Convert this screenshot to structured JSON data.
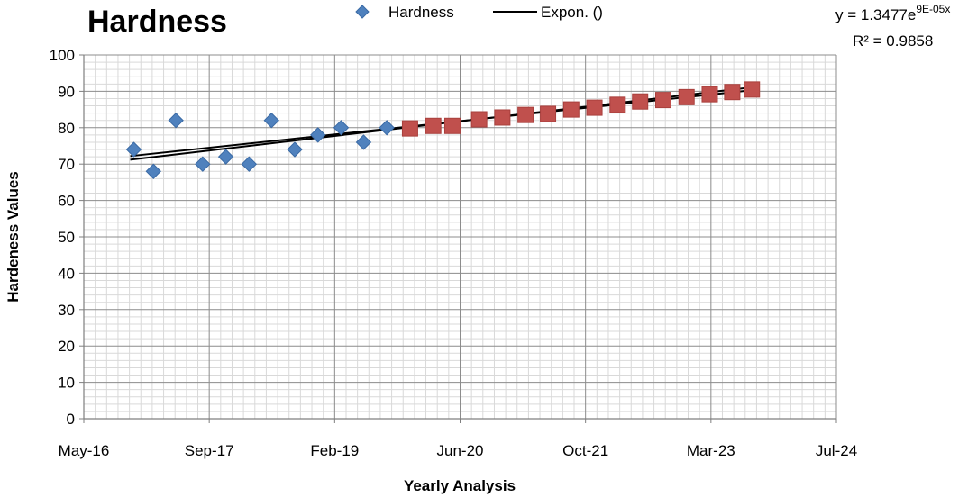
{
  "chart_data": {
    "type": "scatter",
    "title": "Hardness",
    "xlabel": "Yearly Analysis",
    "ylabel": "Hardeness Values",
    "x_ticks": [
      "May-16",
      "Sep-17",
      "Feb-19",
      "Jun-20",
      "Oct-21",
      "Mar-23",
      "Jul-24"
    ],
    "xlim": [
      "2016-05-01",
      "2024-07-01"
    ],
    "ylim": [
      0,
      100
    ],
    "y_ticks": [
      "0",
      "10",
      "20",
      "30",
      "40",
      "50",
      "60",
      "70",
      "80",
      "90",
      "100"
    ],
    "grid": true,
    "legend_position": "top-center",
    "legend": [
      "Hardness",
      "Expon. ()"
    ],
    "series": [
      {
        "name": "Hardness",
        "marker": "diamond",
        "color": "#4F81BD",
        "points": [
          {
            "x": "2016-11-15",
            "y": 74
          },
          {
            "x": "2017-02-01",
            "y": 68
          },
          {
            "x": "2017-05-01",
            "y": 82
          },
          {
            "x": "2017-08-15",
            "y": 70
          },
          {
            "x": "2017-11-15",
            "y": 72
          },
          {
            "x": "2018-02-15",
            "y": 70
          },
          {
            "x": "2018-05-15",
            "y": 82
          },
          {
            "x": "2018-08-15",
            "y": 74
          },
          {
            "x": "2018-11-15",
            "y": 78
          },
          {
            "x": "2019-02-15",
            "y": 80
          },
          {
            "x": "2019-05-15",
            "y": 76
          },
          {
            "x": "2019-08-15",
            "y": 80
          }
        ]
      },
      {
        "marker": "square",
        "color": "#C0504D",
        "points": [
          {
            "x": "2019-11-15",
            "y": 79.8
          },
          {
            "x": "2020-02-15",
            "y": 80.5
          },
          {
            "x": "2020-05-01",
            "y": 80.5
          },
          {
            "x": "2020-08-15",
            "y": 82.3
          },
          {
            "x": "2020-11-15",
            "y": 82.8
          },
          {
            "x": "2021-02-15",
            "y": 83.5
          },
          {
            "x": "2021-05-15",
            "y": 83.8
          },
          {
            "x": "2021-08-15",
            "y": 85.0
          },
          {
            "x": "2021-11-15",
            "y": 85.5
          },
          {
            "x": "2022-02-15",
            "y": 86.3
          },
          {
            "x": "2022-05-15",
            "y": 87.2
          },
          {
            "x": "2022-08-15",
            "y": 87.6
          },
          {
            "x": "2022-11-15",
            "y": 88.4
          },
          {
            "x": "2023-02-15",
            "y": 89.2
          },
          {
            "x": "2023-05-15",
            "y": 89.8
          },
          {
            "x": "2023-08-01",
            "y": 90.5
          }
        ]
      }
    ],
    "trendlines": [
      {
        "type": "exponential",
        "color": "#000000",
        "points": [
          {
            "x": "2016-11-01",
            "y": 72.2
          },
          {
            "x": "2023-08-15",
            "y": 90.4
          }
        ]
      },
      {
        "color": "#000000",
        "points": [
          {
            "x": "2016-11-01",
            "y": 71.2
          },
          {
            "x": "2023-08-15",
            "y": 91.2
          }
        ]
      }
    ],
    "annotation": {
      "eq_prefix": "y = 1.3477e",
      "eq_exponent": "9E-05x",
      "r2": "R² = 0.9858"
    }
  }
}
